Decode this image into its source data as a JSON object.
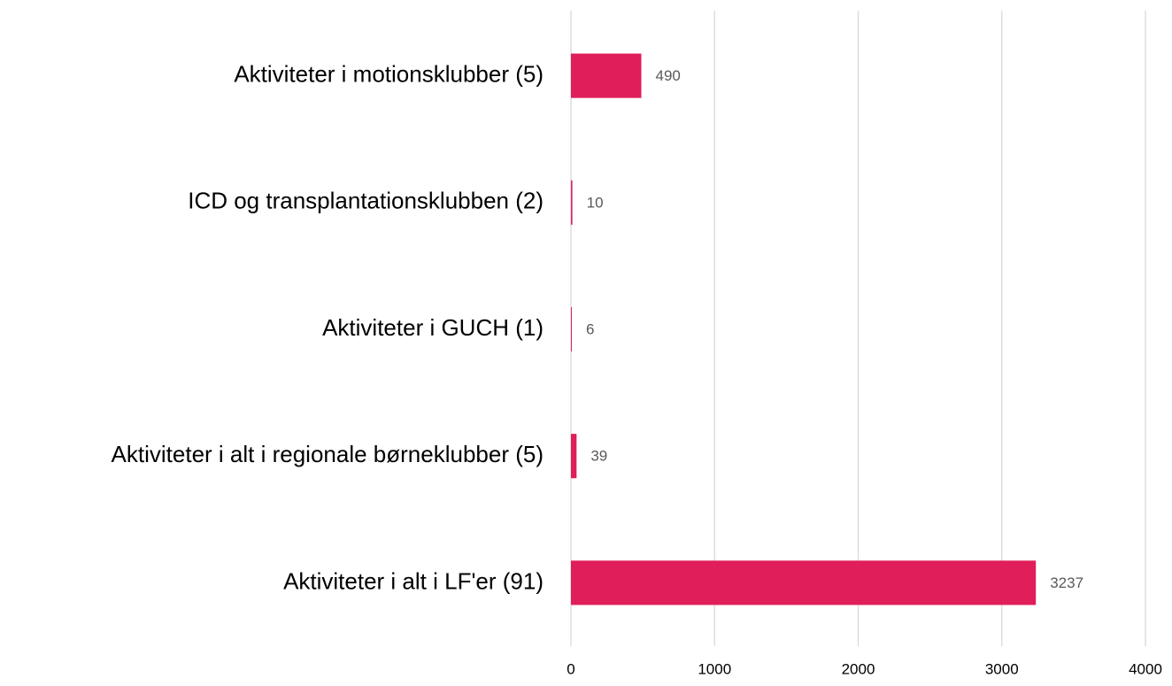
{
  "chart_data": {
    "type": "bar",
    "orientation": "horizontal",
    "categories": [
      "Aktiviteter i motionsklubber (5)",
      "ICD og transplantationsklubben (2)",
      "Aktiviteter i GUCH (1)",
      "Aktiviteter i alt i regionale børneklubber (5)",
      "Aktiviteter i alt i LF'er (91)"
    ],
    "values": [
      490,
      10,
      6,
      39,
      3237
    ],
    "color": "#df1e5a",
    "xlim": [
      0,
      4000
    ],
    "xticks": [
      0,
      1000,
      2000,
      3000,
      4000
    ],
    "grid": true
  }
}
